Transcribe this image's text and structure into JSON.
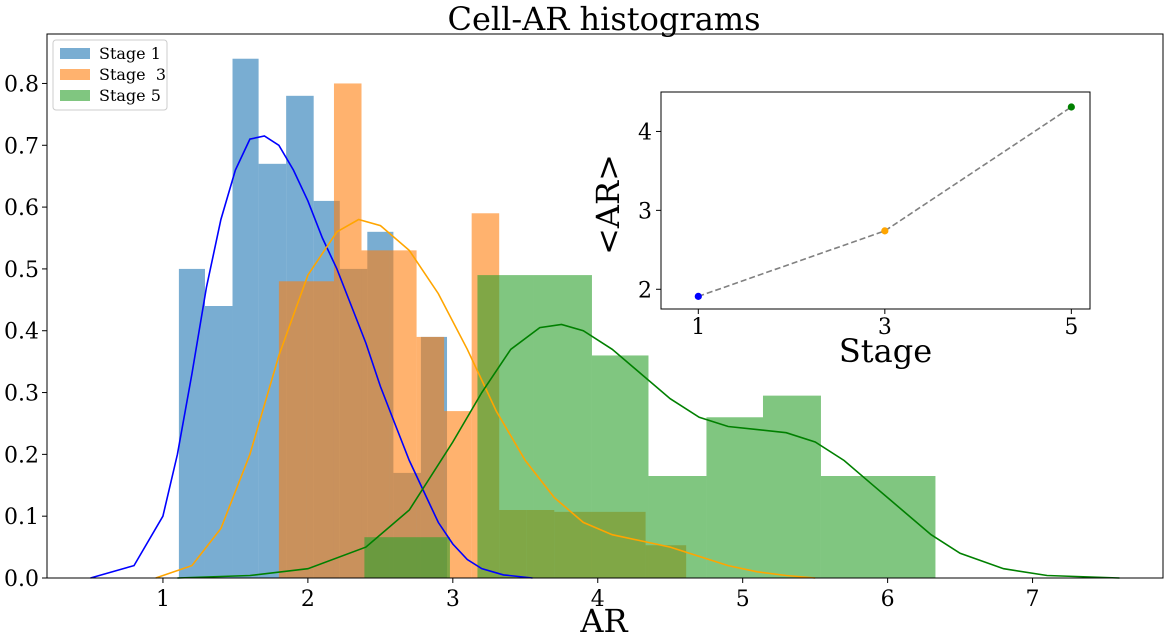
{
  "chart_data": {
    "type": "bar",
    "title": "Cell-AR histograms",
    "xlabel": "AR",
    "ylabel": "",
    "xlim": [
      0.2,
      7.9
    ],
    "ylim": [
      0,
      0.88
    ],
    "xticks": [
      1,
      2,
      3,
      4,
      5,
      6,
      7
    ],
    "yticks": [
      0.0,
      0.1,
      0.2,
      0.3,
      0.4,
      0.5,
      0.6,
      0.7,
      0.8
    ],
    "legend_position": "top-left",
    "series": [
      {
        "name": "Stage 1",
        "color": "#1f77b4",
        "bin_edges": [
          1.11,
          1.29,
          1.48,
          1.66,
          1.85,
          2.04,
          2.22,
          2.41,
          2.59,
          2.78,
          2.96
        ],
        "values": [
          0.5,
          0.44,
          0.84,
          0.67,
          0.78,
          0.61,
          0.5,
          0.56,
          0.17,
          0.39
        ],
        "kde": {
          "color": "#0000ff",
          "x": [
            0.5,
            0.8,
            1.0,
            1.1,
            1.2,
            1.3,
            1.4,
            1.5,
            1.6,
            1.7,
            1.8,
            1.9,
            2.0,
            2.1,
            2.2,
            2.3,
            2.4,
            2.5,
            2.6,
            2.7,
            2.8,
            2.9,
            3.0,
            3.1,
            3.2,
            3.35,
            3.55
          ],
          "y": [
            0.0,
            0.02,
            0.1,
            0.2,
            0.33,
            0.47,
            0.58,
            0.66,
            0.71,
            0.715,
            0.7,
            0.66,
            0.61,
            0.55,
            0.5,
            0.44,
            0.38,
            0.31,
            0.25,
            0.19,
            0.14,
            0.09,
            0.055,
            0.03,
            0.015,
            0.005,
            0.0
          ]
        }
      },
      {
        "name": "Stage  3",
        "color": "#ff7f0e",
        "bin_edges": [
          1.8,
          1.99,
          2.18,
          2.37,
          2.56,
          2.75,
          2.94,
          3.13,
          3.32,
          3.51,
          3.7
        ],
        "values": [
          0.48,
          0.48,
          0.8,
          0.53,
          0.53,
          0.39,
          0.27,
          0.59,
          0.11,
          0.11
        ],
        "extra_bins": [
          {
            "x0": 3.7,
            "x1": 4.33,
            "value": 0.107
          },
          {
            "x0": 4.33,
            "x1": 4.61,
            "value": 0.053
          }
        ],
        "kde": {
          "color": "#ffa500",
          "x": [
            0.95,
            1.2,
            1.4,
            1.6,
            1.8,
            2.0,
            2.2,
            2.35,
            2.5,
            2.7,
            2.9,
            3.1,
            3.3,
            3.5,
            3.7,
            3.9,
            4.1,
            4.3,
            4.5,
            4.7,
            4.9,
            5.1,
            5.3,
            5.5
          ],
          "y": [
            0.0,
            0.02,
            0.08,
            0.2,
            0.36,
            0.49,
            0.56,
            0.58,
            0.57,
            0.53,
            0.46,
            0.37,
            0.27,
            0.19,
            0.13,
            0.09,
            0.07,
            0.06,
            0.05,
            0.035,
            0.02,
            0.01,
            0.004,
            0.0
          ]
        }
      },
      {
        "name": "Stage 5",
        "color": "#2ca02c",
        "bin_edges": [
          2.39,
          2.98,
          3.17,
          3.56,
          3.96,
          4.35,
          4.75,
          5.14,
          5.54,
          5.93,
          6.33
        ],
        "values": [
          0.066,
          0.0,
          0.49,
          0.49,
          0.36,
          0.165,
          0.26,
          0.295,
          0.165,
          0.165
        ],
        "kde": {
          "color": "#008000",
          "x": [
            1.1,
            1.6,
            2.0,
            2.4,
            2.7,
            3.0,
            3.2,
            3.4,
            3.6,
            3.75,
            3.9,
            4.1,
            4.3,
            4.5,
            4.7,
            4.9,
            5.1,
            5.3,
            5.5,
            5.7,
            5.9,
            6.1,
            6.3,
            6.5,
            6.8,
            7.1,
            7.6
          ],
          "y": [
            0.0,
            0.004,
            0.015,
            0.05,
            0.11,
            0.22,
            0.3,
            0.37,
            0.405,
            0.41,
            0.4,
            0.37,
            0.33,
            0.29,
            0.26,
            0.245,
            0.24,
            0.235,
            0.22,
            0.19,
            0.15,
            0.11,
            0.07,
            0.04,
            0.015,
            0.004,
            0.0
          ]
        }
      }
    ],
    "inset": {
      "type": "line",
      "xlabel": "Stage",
      "ylabel": "<AR>",
      "xlim": [
        0.6,
        5.2
      ],
      "ylim": [
        1.75,
        4.5
      ],
      "xticks": [
        1,
        3,
        5
      ],
      "yticks": [
        2,
        3,
        4
      ],
      "line_color": "#808080",
      "line_style": "dashed",
      "points": [
        {
          "x": 1,
          "y": 1.91,
          "color": "#0000ff"
        },
        {
          "x": 3,
          "y": 2.74,
          "color": "#ffa500"
        },
        {
          "x": 5,
          "y": 4.31,
          "color": "#008000"
        }
      ]
    }
  }
}
